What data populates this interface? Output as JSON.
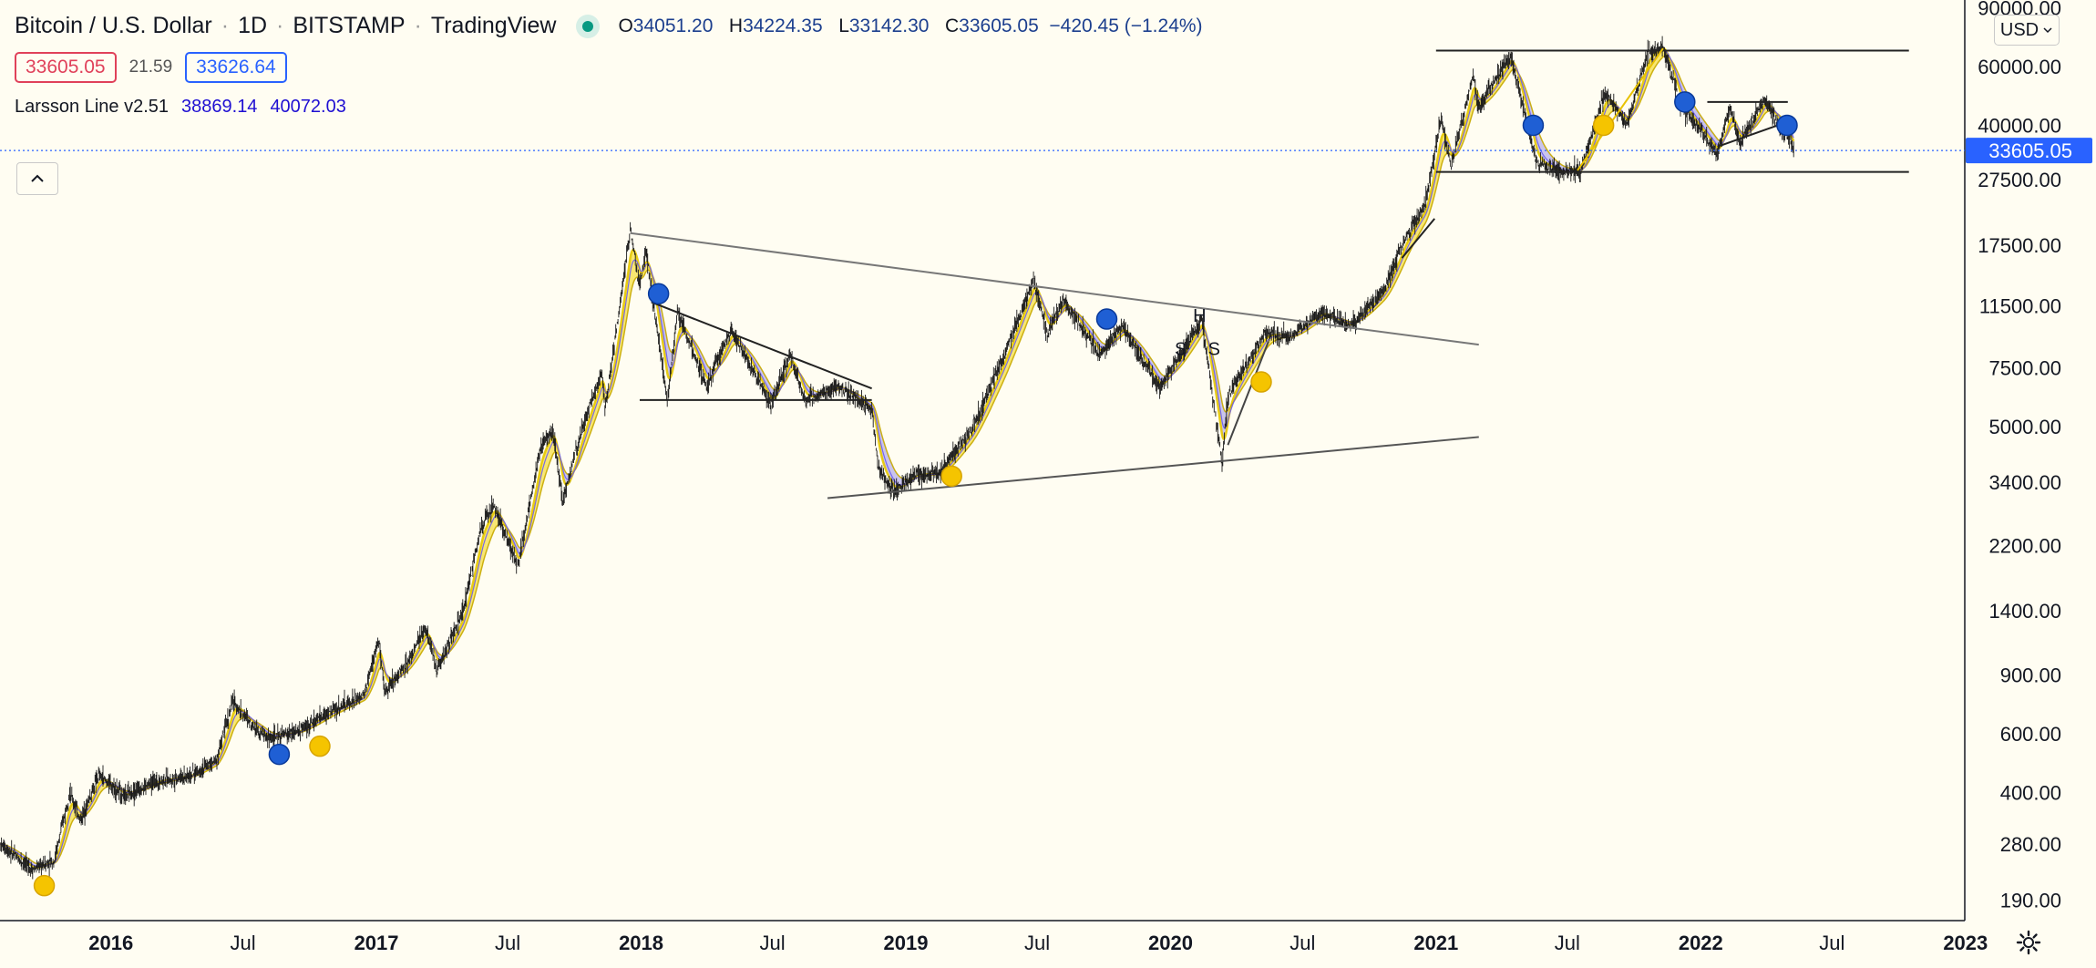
{
  "header": {
    "symbol": "Bitcoin / U.S. Dollar",
    "interval": "1D",
    "exchange": "BITSTAMP",
    "source": "TradingView",
    "o_label": "O",
    "o": "34051.20",
    "h_label": "H",
    "h": "34224.35",
    "l_label": "L",
    "l": "33142.30",
    "c_label": "C",
    "c": "33605.05",
    "change": "−420.45 (−1.24%)"
  },
  "bid_price": "33605.05",
  "volume": "21.59",
  "ask_price": "33626.64",
  "study": {
    "name": "Larsson Line v2.51",
    "value1": "38869.14",
    "value2": "40072.03"
  },
  "currency": "USD",
  "collapse_icon": "chevron-up-icon",
  "settings_icon": "gear-icon",
  "colors": {
    "background": "#fffdf2",
    "candle": "#1a1a1a",
    "yellow_band": "#f2d400",
    "purple_band": "#4a3ee0",
    "blue_marker": "#1f5fd4",
    "yellow_marker": "#f5c400",
    "price_label": "#2962ff"
  },
  "chart_data": {
    "type": "line",
    "y_scale": "log",
    "ylim": [
      165,
      95000
    ],
    "xlim": [
      "2015-08-01",
      "2022-12-31"
    ],
    "last_price": 33605.05,
    "y_ticks": [
      {
        "label": "90000.00",
        "value": 90000
      },
      {
        "label": "60000.00",
        "value": 60000
      },
      {
        "label": "40000.00",
        "value": 40000
      },
      {
        "label": "27500.00",
        "value": 27500
      },
      {
        "label": "17500.00",
        "value": 17500
      },
      {
        "label": "11500.00",
        "value": 11500
      },
      {
        "label": "7500.00",
        "value": 7500
      },
      {
        "label": "5000.00",
        "value": 5000
      },
      {
        "label": "3400.00",
        "value": 3400
      },
      {
        "label": "2200.00",
        "value": 2200
      },
      {
        "label": "1400.00",
        "value": 1400
      },
      {
        "label": "900.00",
        "value": 900
      },
      {
        "label": "600.00",
        "value": 600
      },
      {
        "label": "400.00",
        "value": 400
      },
      {
        "label": "280.00",
        "value": 280
      },
      {
        "label": "190.00",
        "value": 190
      }
    ],
    "x_ticks": [
      {
        "label": "2016",
        "date": "2016-01-01",
        "major": true
      },
      {
        "label": "Jul",
        "date": "2016-07-01",
        "major": false
      },
      {
        "label": "2017",
        "date": "2017-01-01",
        "major": true
      },
      {
        "label": "Jul",
        "date": "2017-07-01",
        "major": false
      },
      {
        "label": "2018",
        "date": "2018-01-01",
        "major": true
      },
      {
        "label": "Jul",
        "date": "2018-07-01",
        "major": false
      },
      {
        "label": "2019",
        "date": "2019-01-01",
        "major": true
      },
      {
        "label": "Jul",
        "date": "2019-07-01",
        "major": false
      },
      {
        "label": "2020",
        "date": "2020-01-01",
        "major": true
      },
      {
        "label": "Jul",
        "date": "2020-07-01",
        "major": false
      },
      {
        "label": "2021",
        "date": "2021-01-01",
        "major": true
      },
      {
        "label": "Jul",
        "date": "2021-07-01",
        "major": false
      },
      {
        "label": "2022",
        "date": "2022-01-01",
        "major": true
      },
      {
        "label": "Jul",
        "date": "2022-07-01",
        "major": false
      },
      {
        "label": "2023",
        "date": "2023-01-01",
        "major": true
      }
    ],
    "series": [
      {
        "name": "BTCUSD",
        "points": [
          [
            "2015-08-01",
            280
          ],
          [
            "2015-09-15",
            235
          ],
          [
            "2015-10-15",
            250
          ],
          [
            "2015-11-05",
            400
          ],
          [
            "2015-11-20",
            330
          ],
          [
            "2015-12-15",
            450
          ],
          [
            "2016-01-20",
            390
          ],
          [
            "2016-03-01",
            430
          ],
          [
            "2016-04-20",
            450
          ],
          [
            "2016-05-25",
            500
          ],
          [
            "2016-06-17",
            750
          ],
          [
            "2016-07-10",
            650
          ],
          [
            "2016-08-05",
            580
          ],
          [
            "2016-09-15",
            610
          ],
          [
            "2016-10-30",
            700
          ],
          [
            "2016-12-15",
            780
          ],
          [
            "2017-01-04",
            1150
          ],
          [
            "2017-01-12",
            800
          ],
          [
            "2017-02-15",
            1000
          ],
          [
            "2017-03-10",
            1250
          ],
          [
            "2017-03-25",
            930
          ],
          [
            "2017-05-01",
            1400
          ],
          [
            "2017-05-25",
            2500
          ],
          [
            "2017-06-12",
            2900
          ],
          [
            "2017-07-15",
            1900
          ],
          [
            "2017-08-15",
            4300
          ],
          [
            "2017-09-01",
            4900
          ],
          [
            "2017-09-15",
            3000
          ],
          [
            "2017-10-10",
            4800
          ],
          [
            "2017-11-08",
            7400
          ],
          [
            "2017-11-12",
            5600
          ],
          [
            "2017-11-28",
            9800
          ],
          [
            "2017-12-17",
            19500
          ],
          [
            "2017-12-30",
            13000
          ],
          [
            "2018-01-07",
            17000
          ],
          [
            "2018-02-06",
            6000
          ],
          [
            "2018-02-20",
            11000
          ],
          [
            "2018-04-01",
            6600
          ],
          [
            "2018-05-05",
            9800
          ],
          [
            "2018-06-29",
            5800
          ],
          [
            "2018-07-25",
            8300
          ],
          [
            "2018-08-14",
            6000
          ],
          [
            "2018-10-01",
            6600
          ],
          [
            "2018-11-15",
            5600
          ],
          [
            "2018-11-25",
            3700
          ],
          [
            "2018-12-15",
            3200
          ],
          [
            "2019-01-15",
            3600
          ],
          [
            "2019-02-15",
            3600
          ],
          [
            "2019-04-02",
            4900
          ],
          [
            "2019-05-15",
            8000
          ],
          [
            "2019-06-26",
            13800
          ],
          [
            "2019-07-15",
            9500
          ],
          [
            "2019-08-06",
            12000
          ],
          [
            "2019-09-25",
            8200
          ],
          [
            "2019-10-26",
            10000
          ],
          [
            "2019-12-17",
            6500
          ],
          [
            "2020-02-13",
            10500
          ],
          [
            "2020-03-12",
            3900
          ],
          [
            "2020-03-20",
            6200
          ],
          [
            "2020-05-10",
            9500
          ],
          [
            "2020-06-15",
            9300
          ],
          [
            "2020-07-27",
            11000
          ],
          [
            "2020-09-05",
            10000
          ],
          [
            "2020-10-21",
            12800
          ],
          [
            "2020-11-20",
            18500
          ],
          [
            "2020-12-17",
            23000
          ],
          [
            "2021-01-08",
            42000
          ],
          [
            "2021-01-22",
            30000
          ],
          [
            "2021-02-21",
            57000
          ],
          [
            "2021-02-28",
            45000
          ],
          [
            "2021-04-14",
            64800
          ],
          [
            "2021-05-19",
            31000
          ],
          [
            "2021-06-22",
            29000
          ],
          [
            "2021-07-20",
            29500
          ],
          [
            "2021-08-22",
            50000
          ],
          [
            "2021-09-21",
            40000
          ],
          [
            "2021-10-20",
            66000
          ],
          [
            "2021-11-10",
            69000
          ],
          [
            "2021-12-04",
            46000
          ],
          [
            "2022-01-24",
            33000
          ],
          [
            "2022-02-10",
            45000
          ],
          [
            "2022-02-24",
            35000
          ],
          [
            "2022-03-29",
            48000
          ],
          [
            "2022-04-26",
            38000
          ],
          [
            "2022-05-05",
            36000
          ],
          [
            "2022-05-09",
            33605.05
          ]
        ]
      }
    ],
    "trendlines": [
      {
        "from": [
          "2017-12-17",
          19000
        ],
        "to": [
          "2021-03-01",
          8800
        ],
        "color": "#777777"
      },
      {
        "from": [
          "2018-09-15",
          3050
        ],
        "to": [
          "2021-03-01",
          4650
        ],
        "color": "#555555"
      },
      {
        "from": [
          "2018-01-15",
          11800
        ],
        "to": [
          "2018-11-15",
          6500
        ],
        "color": "#222222"
      },
      {
        "from": [
          "2017-12-30",
          6000
        ],
        "to": [
          "2018-11-15",
          6000
        ],
        "color": "#222222"
      },
      {
        "from": [
          "2020-03-20",
          4400
        ],
        "to": [
          "2020-05-15",
          9000
        ],
        "color": "#444444"
      },
      {
        "from": [
          "2020-11-15",
          16000
        ],
        "to": [
          "2020-12-30",
          21000
        ],
        "color": "#222222"
      },
      {
        "from": [
          "2021-01-01",
          67000
        ],
        "to": [
          "2022-10-15",
          67000
        ],
        "color": "#222222"
      },
      {
        "from": [
          "2021-01-01",
          29000
        ],
        "to": [
          "2022-10-15",
          29000
        ],
        "color": "#222222"
      },
      {
        "from": [
          "2021-07-15",
          29300
        ],
        "to": [
          "2021-11-10",
          68000
        ],
        "color": "#e8c200"
      },
      {
        "from": [
          "2022-01-24",
          34500
        ],
        "to": [
          "2022-05-01",
          41000
        ],
        "color": "#222222"
      },
      {
        "from": [
          "2022-01-10",
          47000
        ],
        "to": [
          "2022-05-01",
          47000
        ],
        "color": "#222222"
      }
    ],
    "blue_markers": [
      {
        "date": "2016-08-20",
        "value": 520
      },
      {
        "date": "2018-01-25",
        "value": 12500
      },
      {
        "date": "2019-10-05",
        "value": 10500
      },
      {
        "date": "2021-05-15",
        "value": 40000
      },
      {
        "date": "2021-12-10",
        "value": 47000
      },
      {
        "date": "2022-04-30",
        "value": 40000
      }
    ],
    "yellow_markers": [
      {
        "date": "2015-10-01",
        "value": 210
      },
      {
        "date": "2016-10-15",
        "value": 550
      },
      {
        "date": "2019-03-05",
        "value": 3550
      },
      {
        "date": "2020-05-05",
        "value": 6800
      },
      {
        "date": "2021-08-20",
        "value": 40000
      }
    ],
    "annotations": [
      {
        "text": "S",
        "date": "2020-01-15",
        "value": 8200
      },
      {
        "text": "H",
        "date": "2020-02-10",
        "value": 10300
      },
      {
        "text": "S",
        "date": "2020-03-01",
        "value": 8200
      }
    ]
  }
}
